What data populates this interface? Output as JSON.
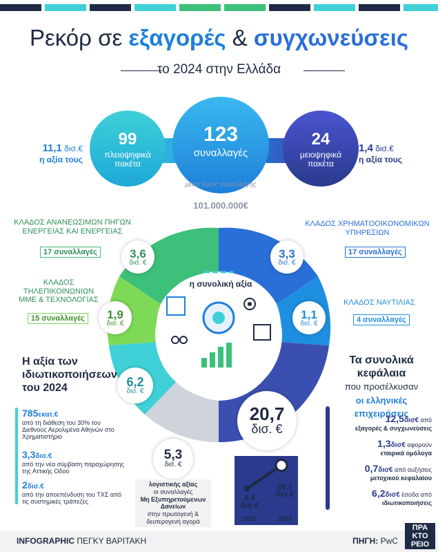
{
  "header": {
    "title_pre": "Ρεκόρ σε ",
    "title_hl1": "εξαγορές",
    "title_amp": " & ",
    "title_hl2": "συγχωνεύσεις",
    "subtitle": "το 2024 στην Ελλάδα"
  },
  "colors": {
    "navy": "#1f2a44",
    "blue": "#1e7fd8",
    "teal": "#20b8c8",
    "green": "#3cc07a",
    "indigo": "#2a3a8c",
    "purple": "#3b3fb0"
  },
  "deals": {
    "majority": {
      "count": "99",
      "label": "πλειοψηφικά πακέτα",
      "value": "11,1",
      "unit": "δισ.€",
      "caption": "η αξία τους"
    },
    "total": {
      "count": "123",
      "label": "συναλλαγές"
    },
    "minority": {
      "count": "24",
      "label": "μειοψηφικά πακέτα",
      "value": "1,4",
      "unit": "δισ.€",
      "caption": "η αξία τους"
    },
    "avg_label": "μέσο ύψος συναλλαγής",
    "avg_value": "101.000.000€"
  },
  "sectors": {
    "energy": {
      "label": "ΚΛΑΔΟΣ ΑΝΑΝΕΩΣΙΜΩΝ ΠΗΓΩΝ ΕΝΕΡΓΕΙΑΣ ΚΑΙ ΕΝΕΡΓΕΙΑΣ",
      "deals": "17 συναλλαγές",
      "value": "3,6",
      "unit": "δισ. €"
    },
    "telecom": {
      "label": "ΚΛΑΔΟΣ ΤΗΛΕΠΙΚΟΙΝΩΝΙΩΝ ΜΜΕ & ΤΕΧΝΟΛΟΓΙΑΣ",
      "deals": "15 συναλλαγές",
      "value": "1,9",
      "unit": "δισ. €"
    },
    "finance": {
      "label": "ΚΛΑΔΟΣ ΧΡΗΜΑΤΟΟΙΚΟΝΟΜΙΚΩΝ ΥΠΗΡΕΣΙΩΝ",
      "deals": "17 συναλλαγές",
      "value": "3,3",
      "unit": "δισ. €"
    },
    "shipping": {
      "label": "ΚΛΑΔΟΣ ΝΑΥΤΙΛΙΑΣ",
      "deals": "4 συναλλαγές",
      "value": "1,1",
      "unit": "δισ. €"
    },
    "privatization": {
      "value": "6,2",
      "unit": "δισ. €"
    },
    "center_label": "η συνολική αξία",
    "total_value": "20,7",
    "total_unit": "δισ. €"
  },
  "privatizations": {
    "title": "Η αξία των ιδιωτικοποιήσεων του 2024",
    "items": [
      {
        "value": "785",
        "unit": "εκατ.€",
        "text": "από τη διάθεση του 30% του Διεθνούς Αερολιμένα Αθηνών στο Χρηματιστήριο"
      },
      {
        "value": "3,3",
        "unit": "δισ.€",
        "text": "από την νέα σύμβαση παραχώρησης της Αττικής Οδού"
      },
      {
        "value": "2",
        "unit": "δισ.€",
        "text": "από την αποεπένδυση του ΤΧΣ από τις συστημικές τράπεζες"
      }
    ]
  },
  "loans": {
    "value": "5,3",
    "unit": "δισ. €",
    "line1": "λογιστικής αξίας",
    "line2": "οι συναλλαγές",
    "line3": "Μη Εξυπηρετούμενων Δανείων",
    "line4": "στην πρωτογενή & δευτερογενή αγορά"
  },
  "capital": {
    "title_bold": "Τα συνολικά κεφάλαια",
    "title_mid": "που προσέλκυσαν",
    "title_blue": "οι ελληνικές επιχειρήσεις",
    "items": [
      {
        "value": "12,5",
        "unit": "δισ€",
        "pre": "από",
        "text": "εξαγορές & συγχωνεύσεις"
      },
      {
        "value": "1,3",
        "unit": "δισ€",
        "pre": "αφορούν",
        "text": "εταιρικά ομόλογα"
      },
      {
        "value": "0,7",
        "unit": "δισ€",
        "pre": "από αυξήσεις",
        "text": "μετοχικού κεφαλαίου"
      },
      {
        "value": "6,2",
        "unit": "δισ€",
        "pre": "έσοδα από",
        "text": "ιδιωτικοποιήσεις"
      }
    ]
  },
  "chart_data": {
    "type": "line",
    "categories": [
      "2023",
      "2024"
    ],
    "values": [
      8.4,
      20.7
    ],
    "labels": [
      "8,4 δισ.€",
      "20,7 δισ.€"
    ]
  },
  "footer": {
    "credit_bold": "INFOGRAPHIC",
    "credit_name": "ΠΕΓΚΥ ΒΑΡΙΤΑΚΗ",
    "source_label": "ΠΗΓΗ:",
    "source_name": "PwC",
    "logo_l1": "ΠΡΑ",
    "logo_l2": "ΚΤΟ",
    "logo_l3": "ΡΕΙΟ"
  }
}
